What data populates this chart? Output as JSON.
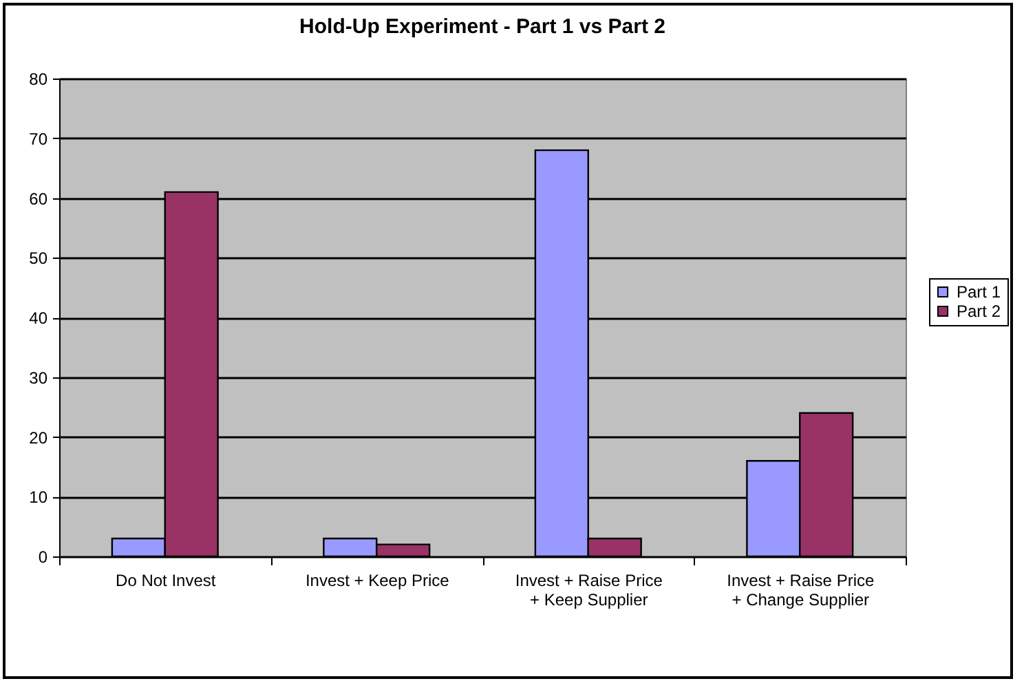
{
  "chart_data": {
    "type": "bar",
    "title": "Hold-Up Experiment - Part 1 vs Part 2",
    "categories": [
      "Do Not Invest",
      "Invest + Keep Price",
      "Invest + Raise Price\n+ Keep Supplier",
      "Invest + Raise Price\n+ Change Supplier"
    ],
    "series": [
      {
        "name": "Part 1",
        "color": "#9999ff",
        "values": [
          3,
          3,
          68,
          16
        ]
      },
      {
        "name": "Part 2",
        "color": "#993366",
        "values": [
          61,
          2,
          3,
          24
        ]
      }
    ],
    "ylim": [
      0,
      80
    ],
    "yticks": [
      0,
      10,
      20,
      30,
      40,
      50,
      60,
      70,
      80
    ],
    "grid": "y",
    "legend": "right"
  }
}
